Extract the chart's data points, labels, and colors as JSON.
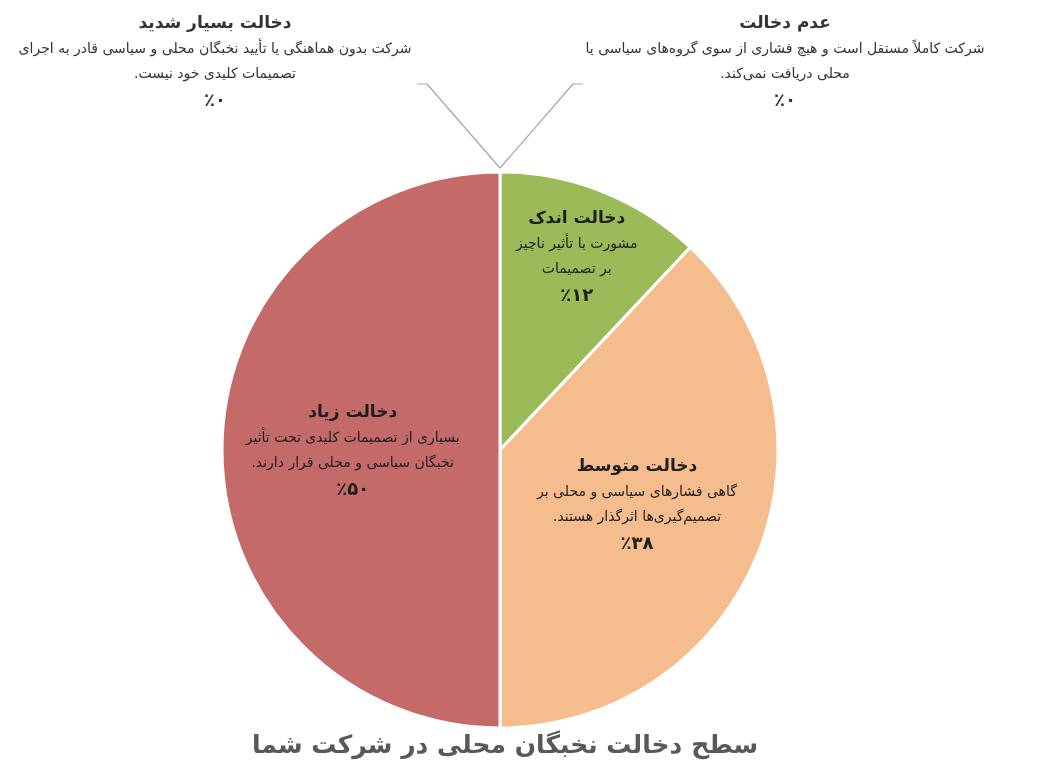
{
  "chart_data": {
    "type": "pie",
    "title": "سطح دخالت نخبگان محلی در شرکت شما",
    "categories": [
      "عدم دخالت",
      "دخالت اندک",
      "دخالت متوسط",
      "دخالت زیاد",
      "دخالت بسیار شدید"
    ],
    "values": [
      0,
      12,
      38,
      50,
      0
    ],
    "value_labels": [
      "٪۰",
      "٪۱۲",
      "٪۳۸",
      "٪۵۰",
      "٪۰"
    ],
    "colors": [
      null,
      "#9bbb59",
      "#f5bc8e",
      "#c46a68",
      null
    ],
    "annotations": [
      "شرکت کاملاً مستقل است و هیچ فشاری از سوی گروه‌های سیاسی یا محلی دریافت نمی‌کند.",
      "مشورت با تأثیر ناچیز بر تصمیمات",
      "گاهی فشارهای سیاسی و محلی بر تصمیم‌گیری‌ها اثرگذار هستند.",
      "بسیاری از تصمیمات کلیدی تحت تأثیر نخبگان سیاسی و محلی قرار دارند.",
      "شرکت بدون هماهنگی یا تأیید نخبگان محلی و سیاسی قادر به اجرای تصمیمات کلیدی خود نیست."
    ]
  }
}
